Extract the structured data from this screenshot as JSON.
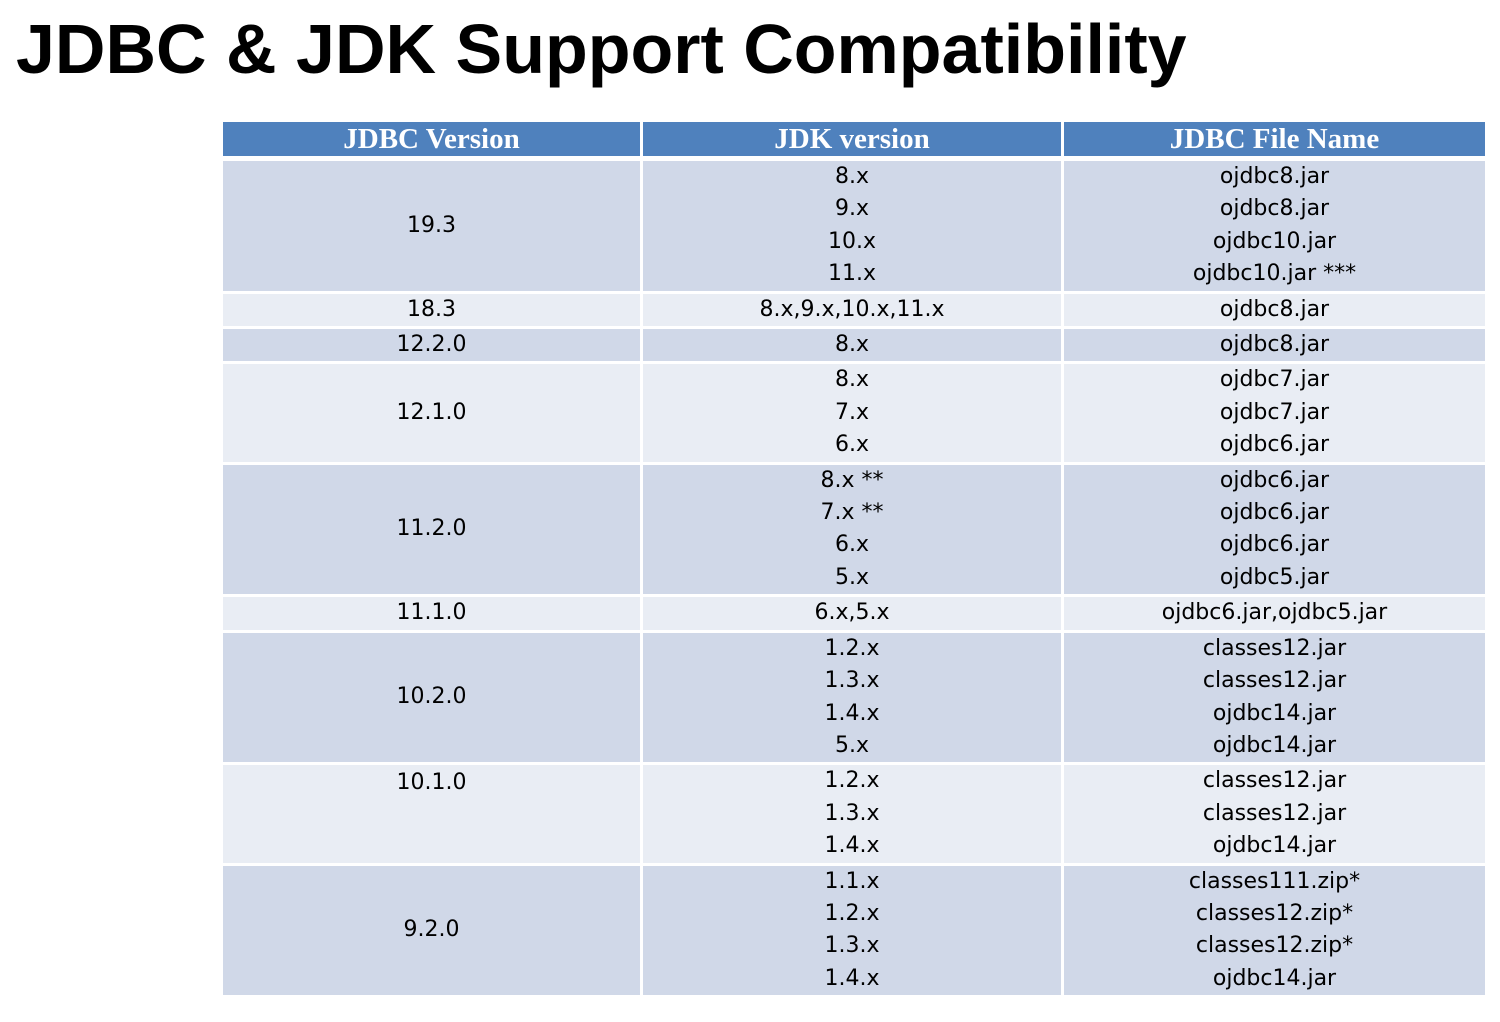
{
  "title": "JDBC & JDK Support Compatibility",
  "table": {
    "headers": [
      "JDBC Version",
      "JDK version",
      "JDBC File Name"
    ],
    "rows": [
      {
        "jdbc": "19.3",
        "jdk": [
          "8.x",
          "9.x",
          "10.x",
          "11.x"
        ],
        "files": [
          "ojdbc8.jar",
          "ojdbc8.jar",
          "ojdbc10.jar",
          "ojdbc10.jar ***"
        ]
      },
      {
        "jdbc": "18.3",
        "jdk": [
          "8.x,9.x,10.x,11.x"
        ],
        "files": [
          "ojdbc8.jar"
        ]
      },
      {
        "jdbc": "12.2.0",
        "jdk": [
          "8.x"
        ],
        "files": [
          "ojdbc8.jar"
        ]
      },
      {
        "jdbc": "12.1.0",
        "jdk": [
          "8.x",
          "7.x",
          "6.x"
        ],
        "files": [
          "ojdbc7.jar",
          "ojdbc7.jar",
          "ojdbc6.jar"
        ]
      },
      {
        "jdbc": "11.2.0",
        "jdk": [
          "8.x **",
          "7.x **",
          "6.x",
          "5.x"
        ],
        "files": [
          "ojdbc6.jar",
          "ojdbc6.jar",
          "ojdbc6.jar",
          "ojdbc5.jar"
        ]
      },
      {
        "jdbc": "11.1.0",
        "jdk": [
          "6.x,5.x"
        ],
        "files": [
          "ojdbc6.jar,ojdbc5.jar"
        ]
      },
      {
        "jdbc": "10.2.0",
        "jdk": [
          "1.2.x",
          "1.3.x",
          "1.4.x",
          "5.x"
        ],
        "files": [
          "classes12.jar",
          "classes12.jar",
          "ojdbc14.jar",
          "ojdbc14.jar"
        ]
      },
      {
        "jdbc": "10.1.0",
        "jdk": [
          "1.2.x",
          "1.3.x",
          "1.4.x"
        ],
        "files": [
          "classes12.jar",
          "classes12.jar",
          "ojdbc14.jar"
        ]
      },
      {
        "jdbc": "9.2.0",
        "jdk": [
          "1.1.x",
          "1.2.x",
          "1.3.x",
          "1.4.x"
        ],
        "files": [
          "classes111.zip*",
          "classes12.zip*",
          "classes12.zip*",
          "ojdbc14.jar"
        ]
      }
    ]
  }
}
